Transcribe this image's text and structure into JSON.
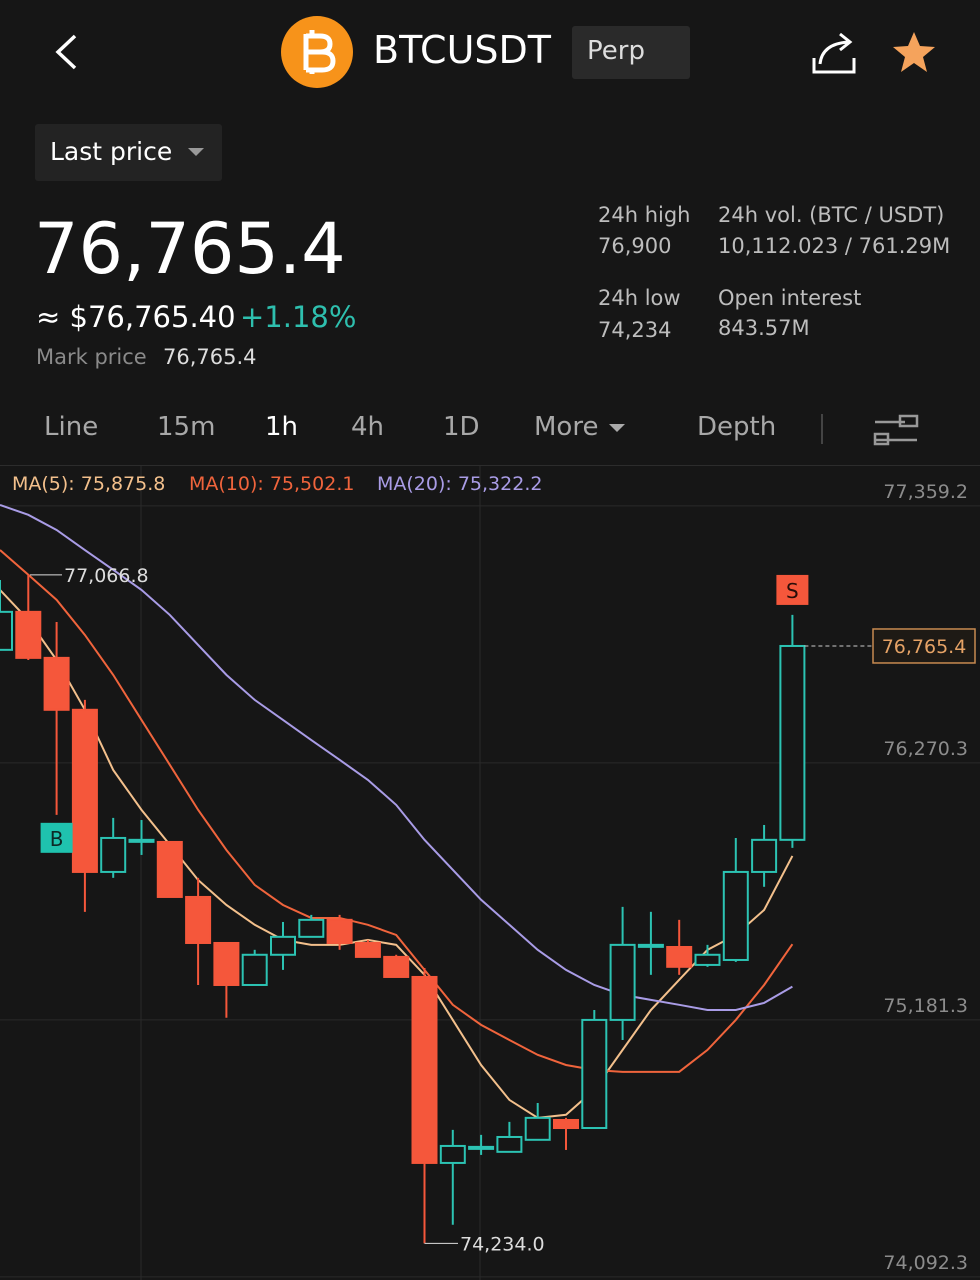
{
  "header": {
    "symbol": "BTCUSDT",
    "contract": "Perp"
  },
  "price_selector": "Last price",
  "last_price": "76,765.4",
  "usd_price": "≈ $76,765.40",
  "change": "+1.18%",
  "mark_price": {
    "label": "Mark price",
    "value": "76,765.4"
  },
  "stats": [
    {
      "label": "24h high",
      "value": "76,900"
    },
    {
      "label": "24h vol. (BTC / USDT)",
      "value": "10,112.023 / 761.29M"
    },
    {
      "label": "24h low",
      "value": "74,234"
    },
    {
      "label": "Open interest",
      "value": "843.57M"
    }
  ],
  "tabs": [
    "Line",
    "15m",
    "1h",
    "4h",
    "1D",
    "More",
    "Depth"
  ],
  "active_tab": "1h",
  "chart": {
    "type": "candlestick",
    "ylim": [
      74079,
      77528
    ],
    "yticks": [
      {
        "value": 77359.2,
        "label": "77,359.2"
      },
      {
        "value": 76270.3,
        "label": "76,270.3"
      },
      {
        "value": 75181.3,
        "label": "75,181.3"
      },
      {
        "value": 74092.3,
        "label": "74,092.3"
      }
    ],
    "up_color": "#2cc3b3",
    "down_color": "#f5573b",
    "candles": [
      {
        "open": 76749,
        "high": 77045,
        "low": 76749,
        "close": 76910
      },
      {
        "open": 76910,
        "high": 77066.8,
        "low": 76706,
        "close": 76715
      },
      {
        "open": 76715,
        "high": 76867,
        "low": 76050,
        "close": 76495
      },
      {
        "open": 76495,
        "high": 76537,
        "low": 75639,
        "close": 75808
      },
      {
        "open": 75808,
        "high": 76037,
        "low": 75783,
        "close": 75952
      },
      {
        "open": 75944,
        "high": 76028,
        "low": 75880,
        "close": 75944
      },
      {
        "open": 75935,
        "high": 75935,
        "low": 75702,
        "close": 75702
      },
      {
        "open": 75702,
        "high": 75783,
        "low": 75329,
        "close": 75507
      },
      {
        "open": 75507,
        "high": 75507,
        "low": 75190,
        "close": 75329
      },
      {
        "open": 75329,
        "high": 75478,
        "low": 75329,
        "close": 75457
      },
      {
        "open": 75457,
        "high": 75596,
        "low": 75393,
        "close": 75533
      },
      {
        "open": 75533,
        "high": 75626,
        "low": 75533,
        "close": 75605
      },
      {
        "open": 75605,
        "high": 75626,
        "low": 75478,
        "close": 75507
      },
      {
        "open": 75507,
        "high": 75520,
        "low": 75448,
        "close": 75448
      },
      {
        "open": 75448,
        "high": 75457,
        "low": 75363,
        "close": 75363
      },
      {
        "open": 75363,
        "high": 75401,
        "low": 74234.0,
        "close": 74575
      },
      {
        "open": 74575,
        "high": 74715,
        "low": 74313,
        "close": 74647
      },
      {
        "open": 74643,
        "high": 74694,
        "low": 74609,
        "close": 74643
      },
      {
        "open": 74622,
        "high": 74749,
        "low": 74622,
        "close": 74685
      },
      {
        "open": 74673,
        "high": 74829,
        "low": 74673,
        "close": 74766
      },
      {
        "open": 74757,
        "high": 74766,
        "low": 74630,
        "close": 74723
      },
      {
        "open": 74723,
        "high": 75223,
        "low": 74723,
        "close": 75181
      },
      {
        "open": 75181,
        "high": 75660,
        "low": 75096,
        "close": 75499
      },
      {
        "open": 75499,
        "high": 75639,
        "low": 75372,
        "close": 75499
      },
      {
        "open": 75490,
        "high": 75605,
        "low": 75372,
        "close": 75406
      },
      {
        "open": 75414,
        "high": 75499,
        "low": 75406,
        "close": 75457
      },
      {
        "open": 75435,
        "high": 75952,
        "low": 75427,
        "close": 75808
      },
      {
        "open": 75808,
        "high": 76007,
        "low": 75745,
        "close": 75944
      },
      {
        "open": 75944,
        "high": 76897,
        "low": 75910,
        "close": 76765.4
      }
    ],
    "moving_averages": [
      {
        "legend": "MA(5): 75,875.8",
        "color": "#f3c08c",
        "values": [
          77003,
          76876,
          76706,
          76495,
          76240,
          76071,
          75923,
          75774,
          75668,
          75584,
          75520,
          75499,
          75499,
          75520,
          75499,
          75372,
          75181,
          74990,
          74842,
          74766,
          74779,
          74885,
          75054,
          75223,
          75351,
          75478,
          75541,
          75647,
          75875.8
        ]
      },
      {
        "legend": "MA(10): 75,502.1",
        "color": "#f0643c",
        "values": [
          77172,
          77067,
          76961,
          76812,
          76643,
          76452,
          76262,
          76071,
          75901,
          75753,
          75668,
          75613,
          75613,
          75584,
          75541,
          75393,
          75245,
          75160,
          75096,
          75033,
          74990,
          74969,
          74961,
          74961,
          74961,
          75054,
          75181,
          75329,
          75502.1
        ]
      },
      {
        "legend": "MA(20): 75,322.2",
        "color": "#a99ce6",
        "values": [
          77363,
          77321,
          77257,
          77172,
          77088,
          77003,
          76897,
          76770,
          76643,
          76537,
          76452,
          76367,
          76283,
          76198,
          76092,
          75944,
          75817,
          75690,
          75584,
          75478,
          75393,
          75329,
          75287,
          75266,
          75245,
          75223,
          75223,
          75253,
          75322.2
        ]
      }
    ],
    "high_label": {
      "value": 77066.8,
      "label": "77,066.8"
    },
    "low_label": {
      "value": 74234.0,
      "label": "74,234.0"
    },
    "last_tag": {
      "value": 76765.4,
      "label": "76,765.4"
    },
    "buy_marker": "B",
    "sell_marker": "S"
  }
}
